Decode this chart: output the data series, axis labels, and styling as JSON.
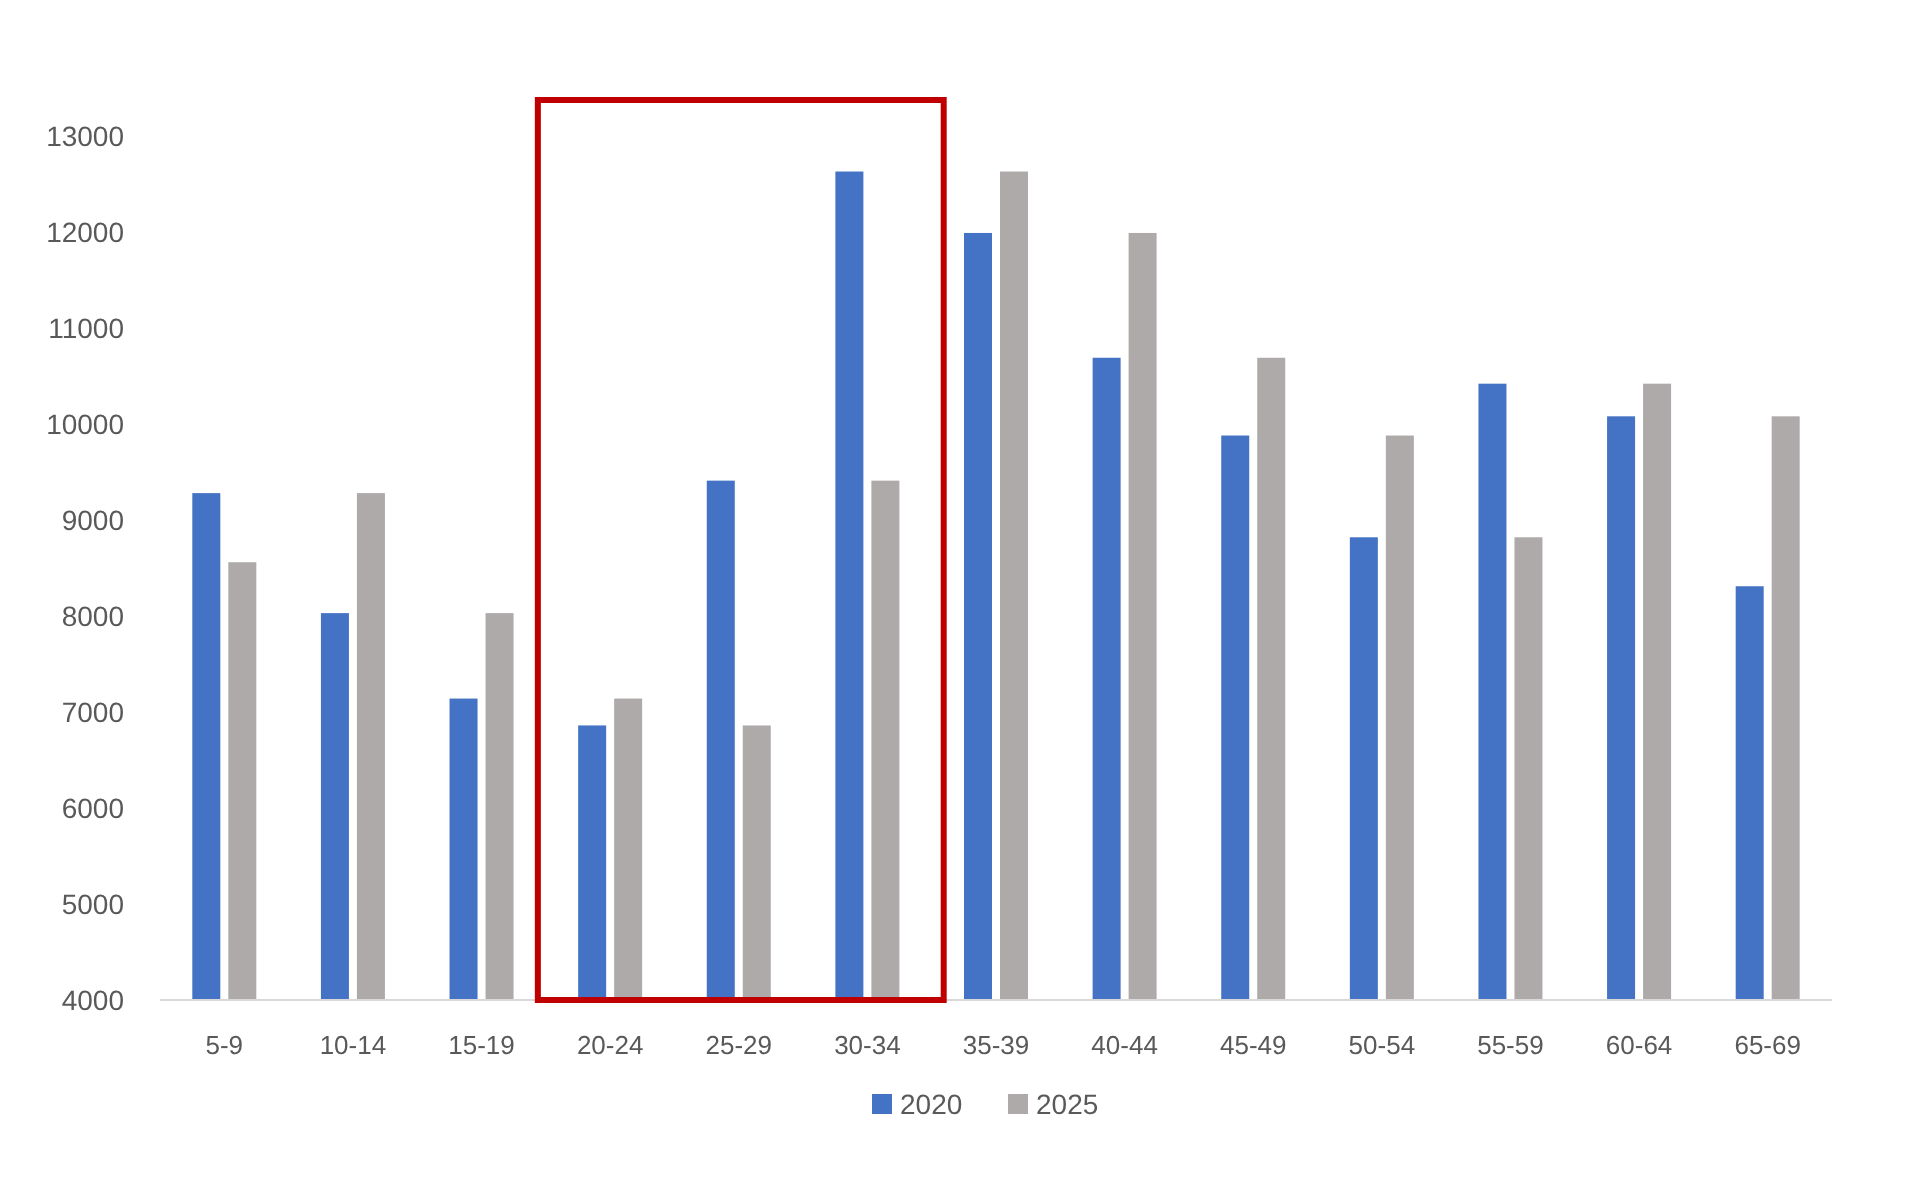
{
  "chart_data": {
    "type": "bar",
    "categories": [
      "5-9",
      "10-14",
      "15-19",
      "20-24",
      "25-29",
      "30-34",
      "35-39",
      "40-44",
      "45-49",
      "50-54",
      "55-59",
      "60-64",
      "65-69"
    ],
    "series": [
      {
        "name": "2020",
        "color": "#4472c4",
        "values": [
          9280,
          8030,
          7140,
          6860,
          9410,
          12630,
          11990,
          10690,
          9880,
          8820,
          10420,
          10080,
          8310
        ]
      },
      {
        "name": "2025",
        "color": "#aeaaaa",
        "values": [
          8560,
          9280,
          8030,
          7140,
          6860,
          9410,
          12630,
          11990,
          10690,
          9880,
          8820,
          10420,
          10080
        ]
      }
    ],
    "ylim": [
      4000,
      13000
    ],
    "yticks": [
      4000,
      5000,
      6000,
      7000,
      8000,
      9000,
      10000,
      11000,
      12000,
      13000
    ],
    "grid": false,
    "legend": "bottom"
  }
}
